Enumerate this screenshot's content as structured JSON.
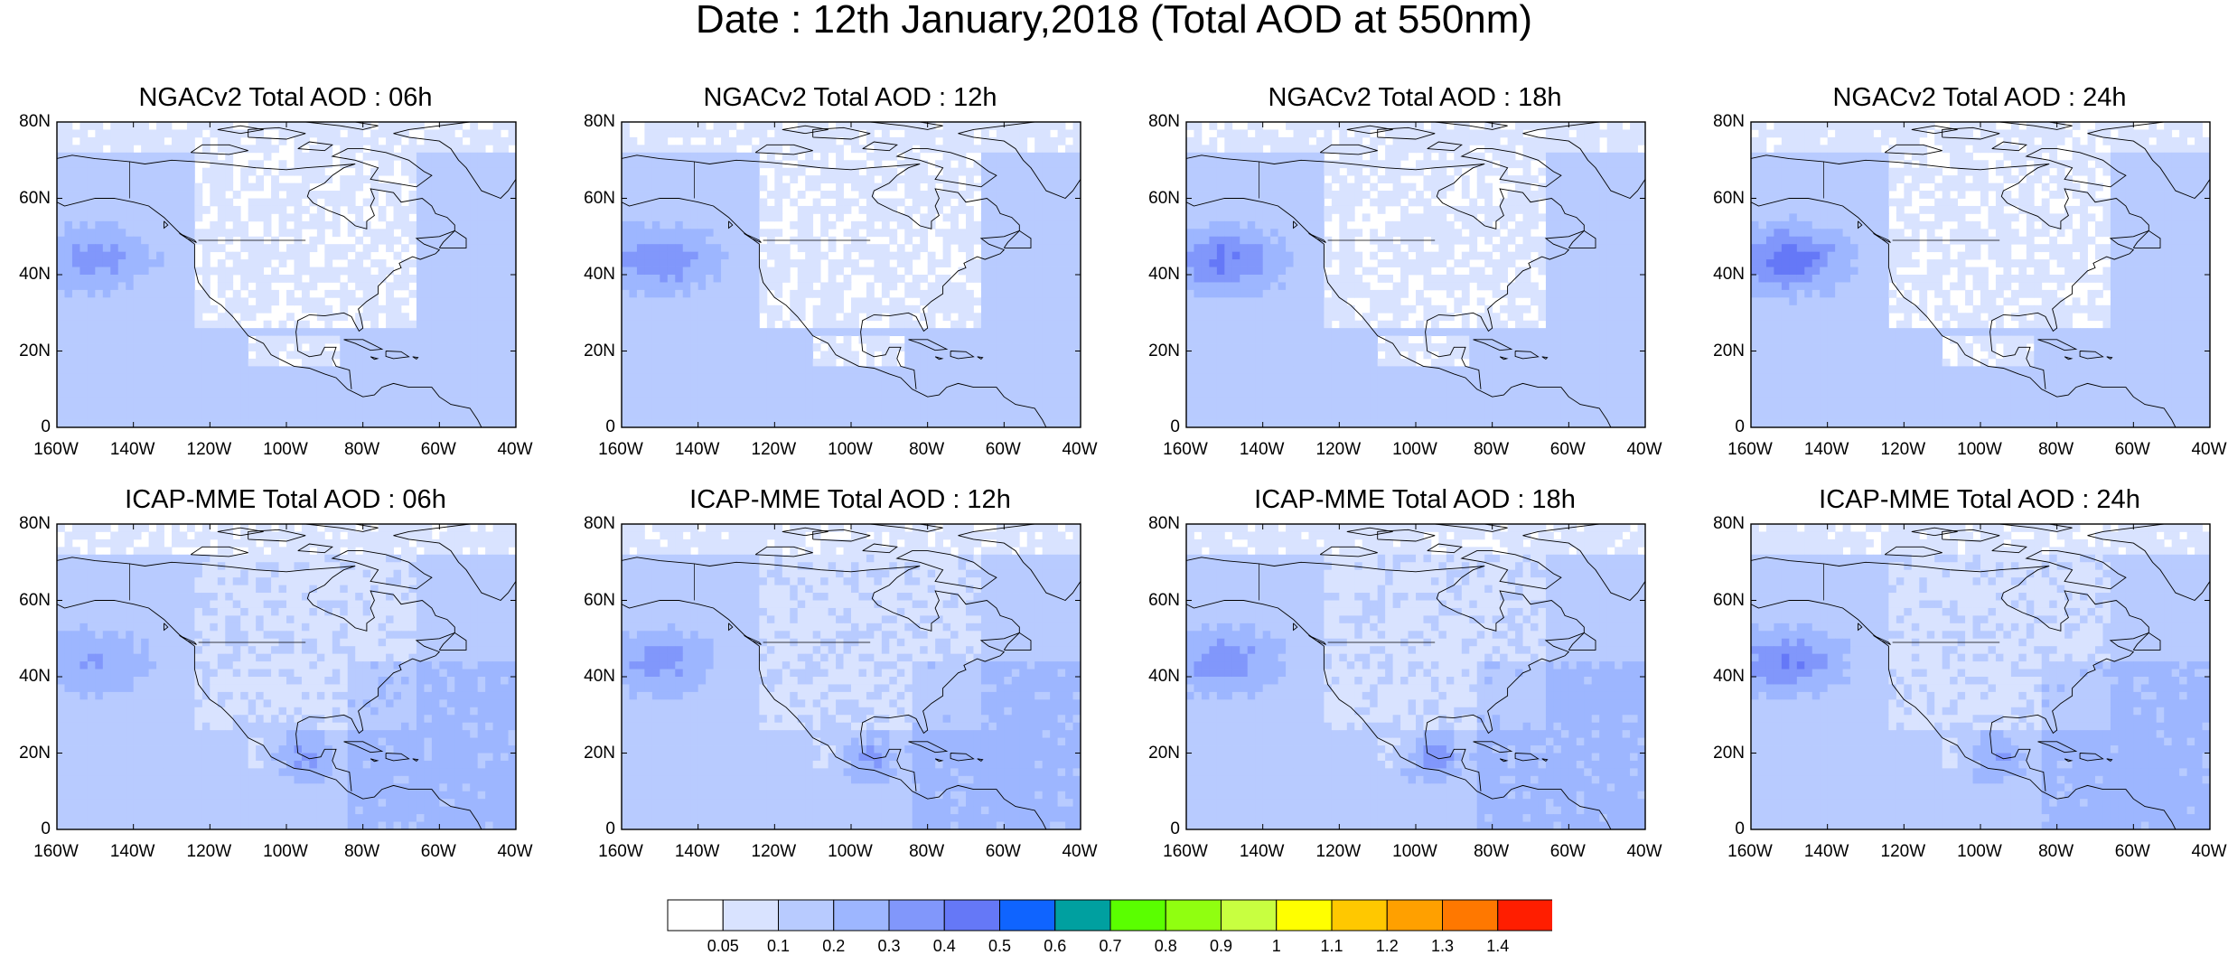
{
  "figure": {
    "title": "Date : 12th January,2018 (Total AOD at 550nm)"
  },
  "axes": {
    "lat_labels": [
      "80N",
      "60N",
      "40N",
      "20N",
      "0"
    ],
    "lon_labels": [
      "160W",
      "140W",
      "120W",
      "100W",
      "80W",
      "60W",
      "40W"
    ]
  },
  "panels": [
    {
      "title": "NGACv2 Total AOD : 06h"
    },
    {
      "title": "NGACv2 Total AOD : 12h"
    },
    {
      "title": "NGACv2 Total AOD : 18h"
    },
    {
      "title": "NGACv2 Total AOD : 24h"
    },
    {
      "title": "ICAP-MME Total AOD : 06h"
    },
    {
      "title": "ICAP-MME Total AOD : 12h"
    },
    {
      "title": "ICAP-MME Total AOD : 18h"
    },
    {
      "title": "ICAP-MME Total AOD : 24h"
    }
  ],
  "colorbar": {
    "labels": [
      "0.05",
      "0.1",
      "0.2",
      "0.3",
      "0.4",
      "0.5",
      "0.6",
      "0.7",
      "0.8",
      "0.9",
      "1",
      "1.1",
      "1.2",
      "1.3",
      "1.4"
    ],
    "colors": [
      "#ffffff",
      "#d9e3ff",
      "#b8cbff",
      "#9db6ff",
      "#8197fb",
      "#6578f7",
      "#0f64ff",
      "#00a0a0",
      "#5aff00",
      "#90ff10",
      "#c8ff40",
      "#ffff00",
      "#ffc800",
      "#ffa000",
      "#ff7800",
      "#ff1e00"
    ]
  }
}
